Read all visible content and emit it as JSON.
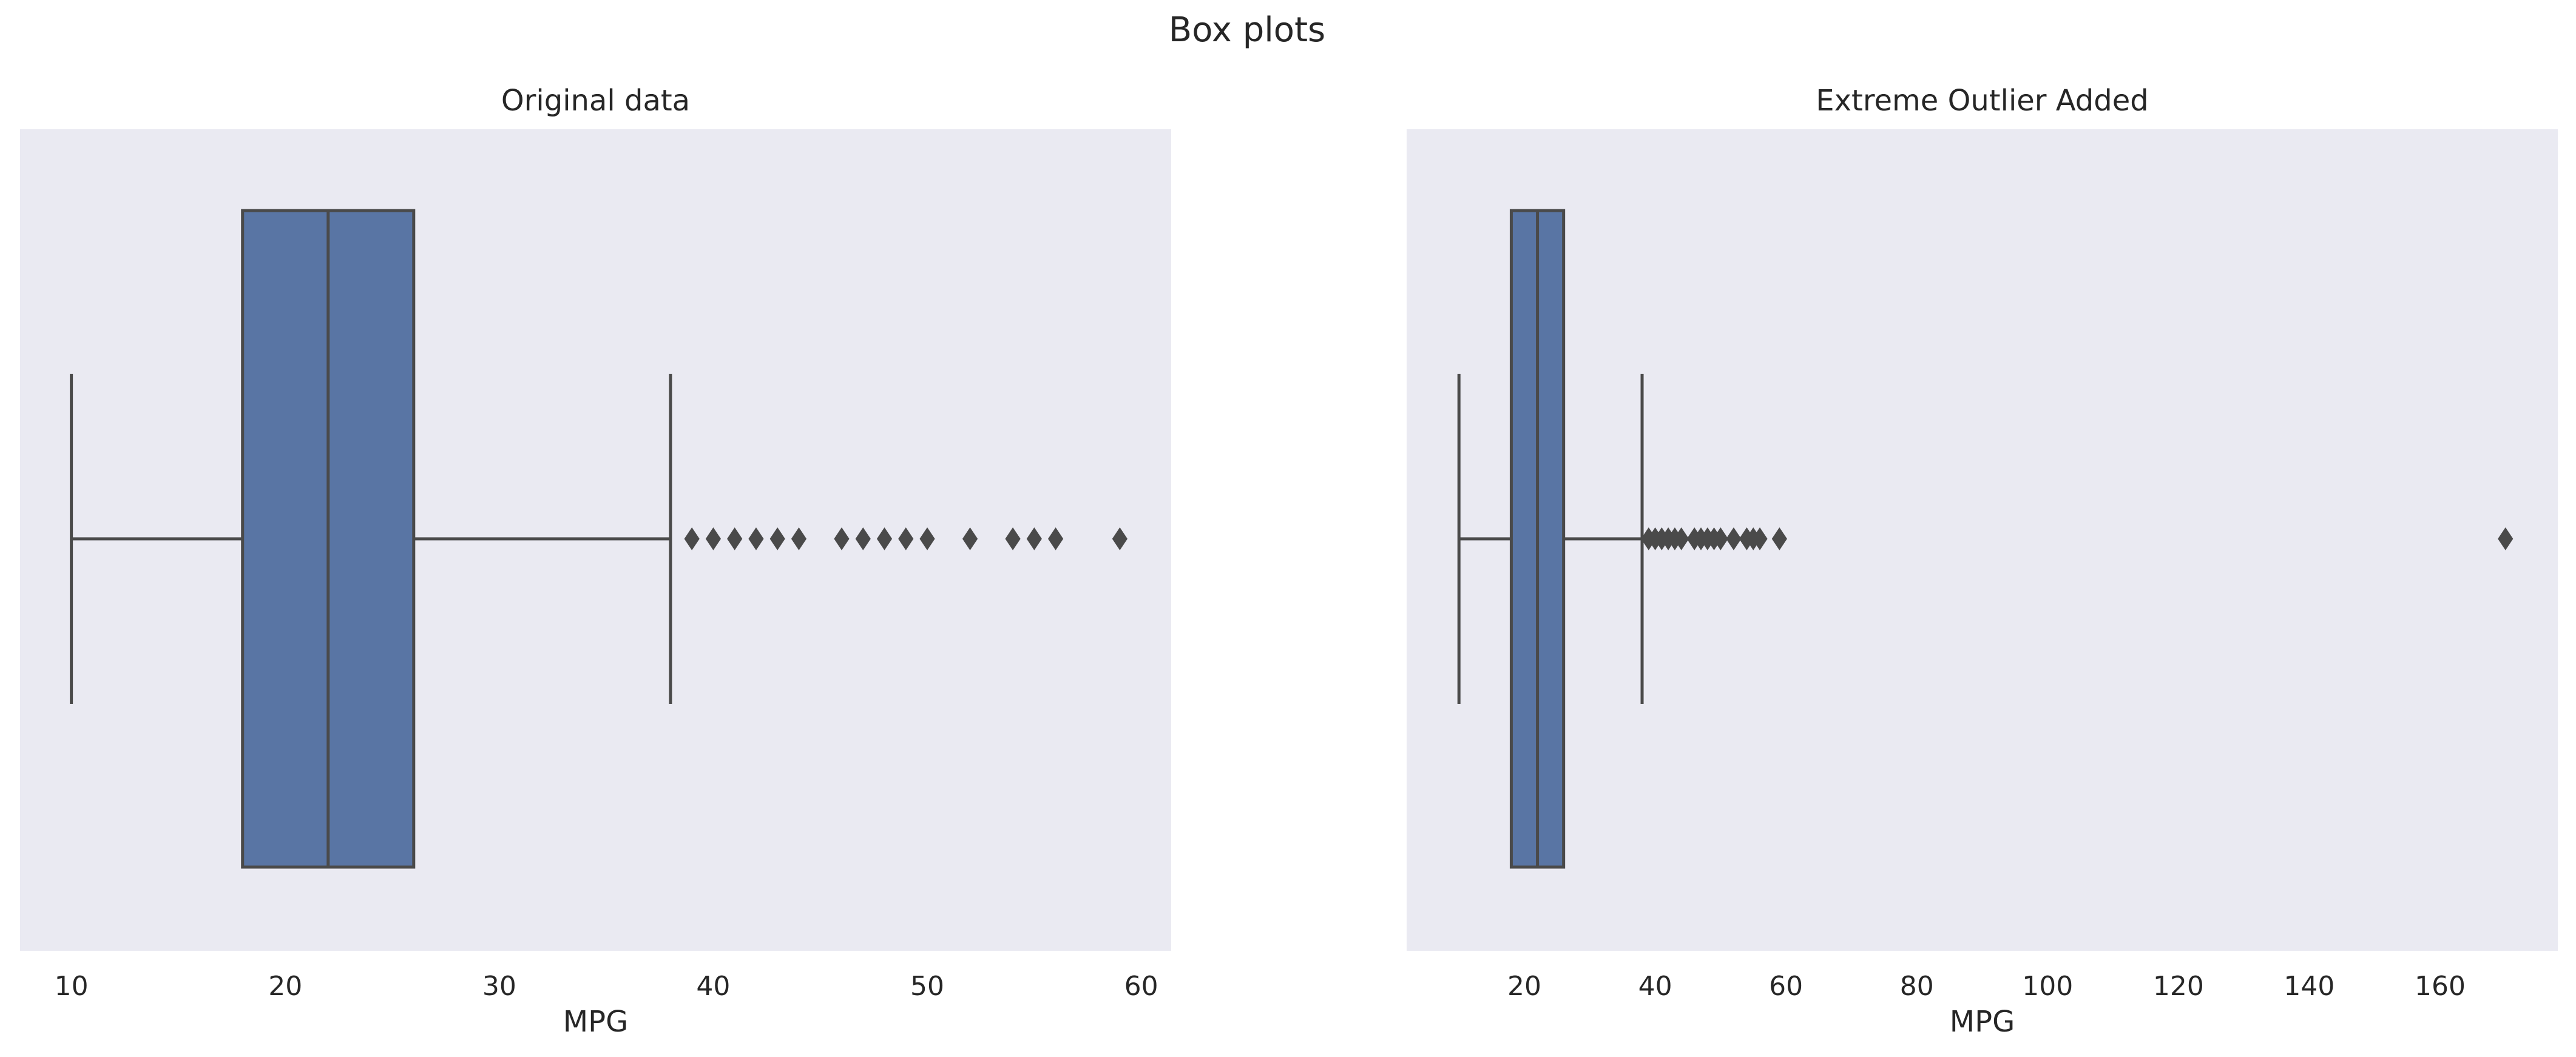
{
  "suptitle": "Box plots",
  "colors": {
    "axes_background": "#eaeaf2",
    "box_fill": "#5975a4",
    "line": "#4a4a4a",
    "text": "#262626",
    "page_background": "#ffffff"
  },
  "chart_data": [
    {
      "type": "box",
      "title": "Original data",
      "xlabel": "MPG",
      "ylabel": "",
      "orientation": "horizontal",
      "grid": false,
      "xlim": [
        7.6,
        61.4
      ],
      "xticks": [
        10,
        20,
        30,
        40,
        50,
        60
      ],
      "stats": {
        "whislo": 10,
        "q1": 18,
        "median": 22,
        "q3": 26,
        "whishi": 38
      },
      "outliers": [
        39,
        40,
        41,
        42,
        43,
        44,
        46,
        47,
        48,
        49,
        50,
        52,
        54,
        55,
        56,
        59
      ]
    },
    {
      "type": "box",
      "title": "Extreme Outlier Added",
      "xlabel": "MPG",
      "ylabel": "",
      "orientation": "horizontal",
      "grid": false,
      "xlim": [
        2,
        178
      ],
      "xticks": [
        20,
        40,
        60,
        80,
        100,
        120,
        140,
        160
      ],
      "stats": {
        "whislo": 10,
        "q1": 18,
        "median": 22,
        "q3": 26,
        "whishi": 38
      },
      "outliers": [
        39,
        40,
        41,
        42,
        43,
        44,
        46,
        47,
        48,
        49,
        50,
        52,
        54,
        55,
        56,
        59,
        170
      ]
    }
  ]
}
